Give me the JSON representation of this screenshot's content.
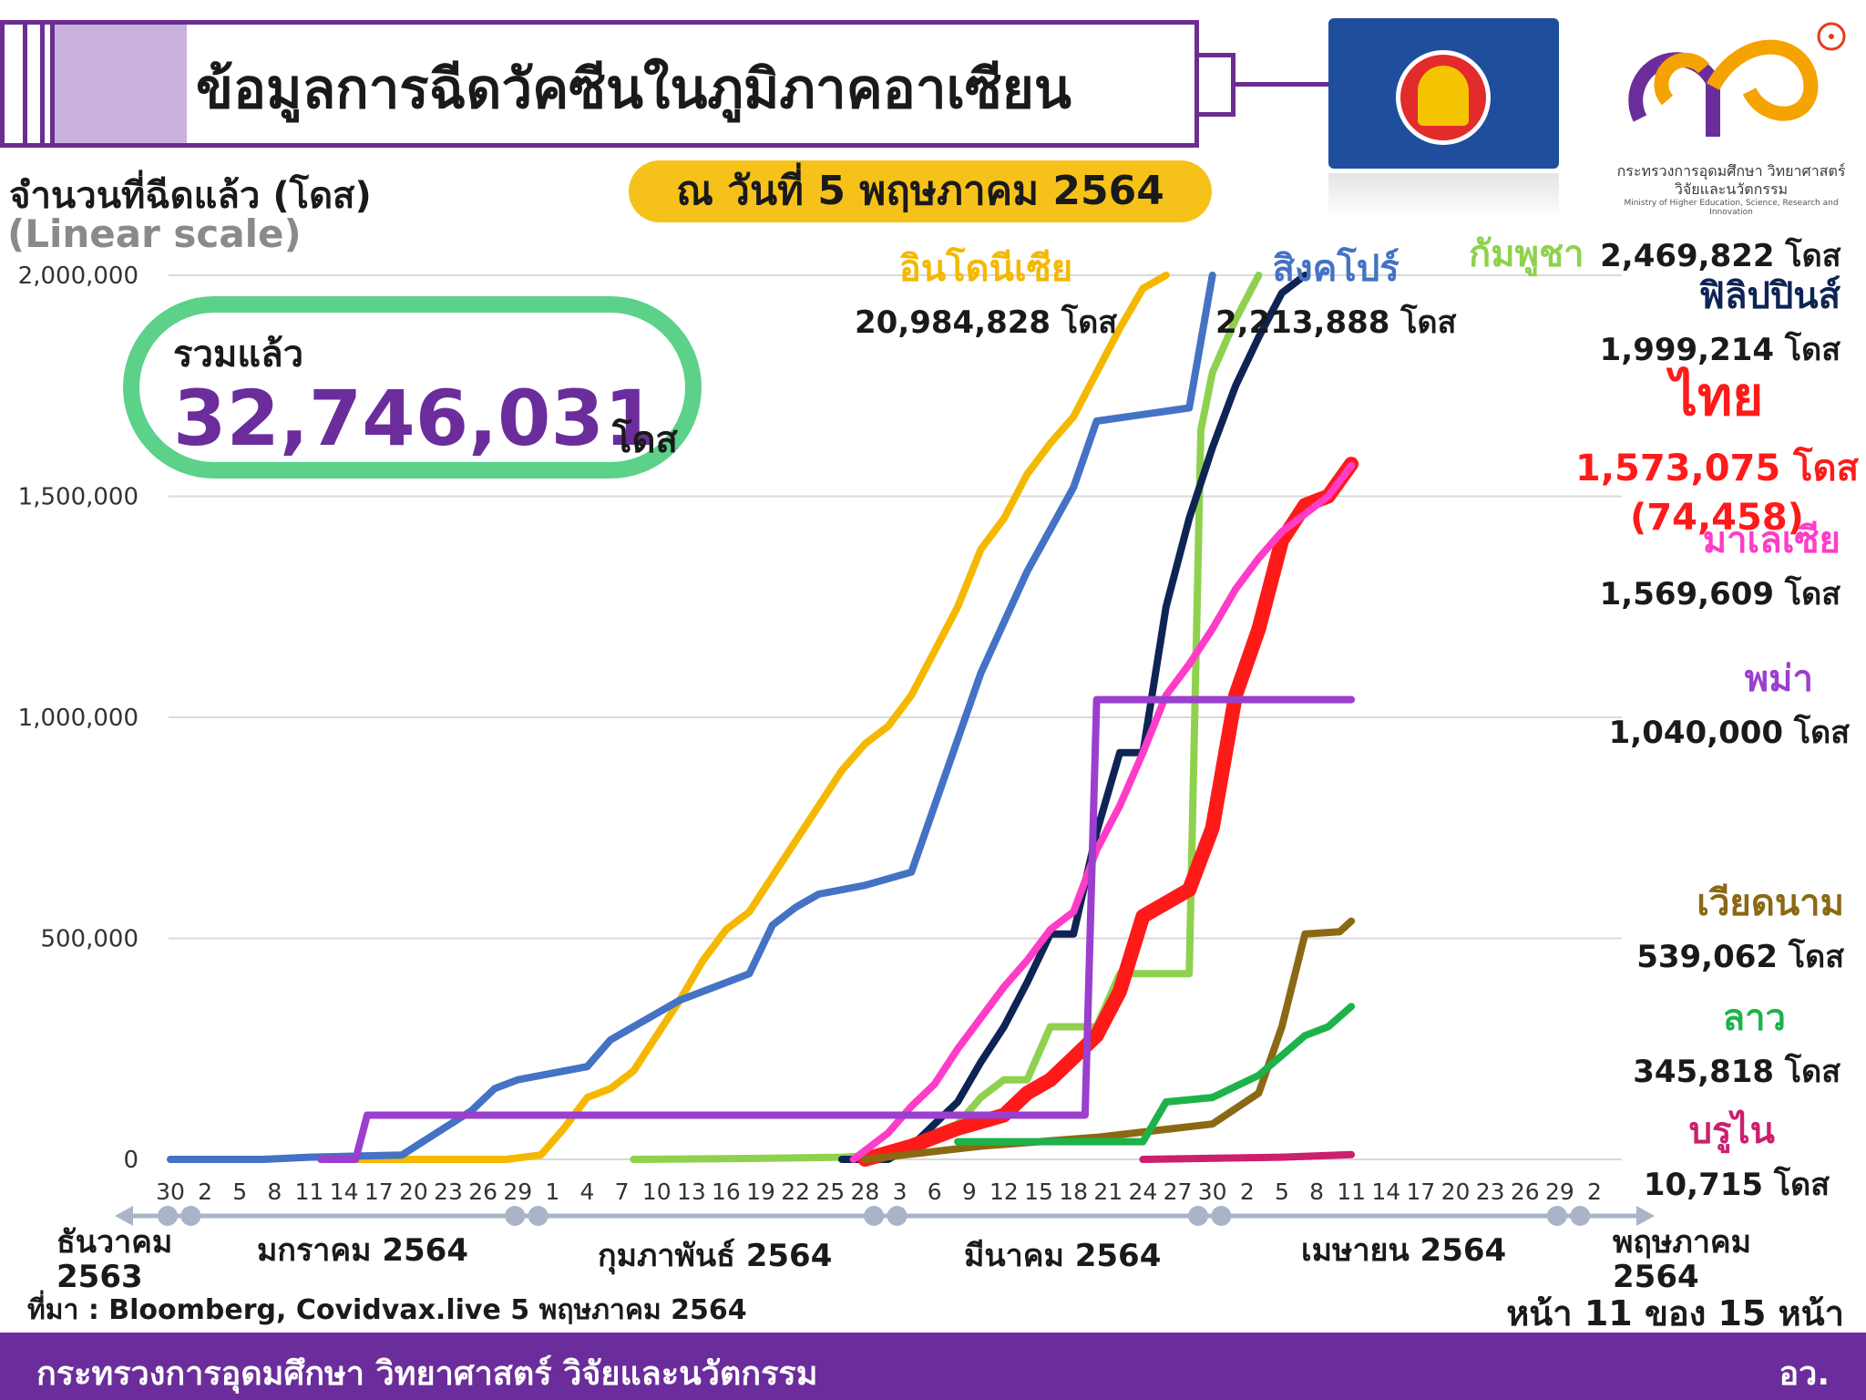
{
  "header": {
    "title": "ข้อมูลการฉีดวัคซีนในภูมิภาคอาเซียน",
    "date": "ณ วันที่ 5 พฤษภาคม 2564",
    "logo_org": "กระทรวงการอุดมศึกษา วิทยาศาสตร์ วิจัยและนวัตกรรม",
    "logo_org_en": "Ministry of Higher Education, Science, Research and Innovation"
  },
  "summary": {
    "label": "รวมแล้ว",
    "value": "32,746,031",
    "unit": "โดส"
  },
  "chart_data": {
    "type": "line",
    "ylabel": "จำนวนที่ฉีดแล้ว (โดส)",
    "yscale_note": "(Linear scale)",
    "ylim": [
      0,
      2000000
    ],
    "y_ticks": [
      "0",
      "500,000",
      "1,000,000",
      "1,500,000",
      "2,000,000"
    ],
    "x_ticks": [
      "30",
      "2",
      "5",
      "8",
      "11",
      "14",
      "17",
      "20",
      "23",
      "26",
      "29",
      "1",
      "4",
      "7",
      "10",
      "13",
      "16",
      "19",
      "22",
      "25",
      "28",
      "3",
      "6",
      "9",
      "12",
      "15",
      "18",
      "21",
      "24",
      "27",
      "30",
      "2",
      "5",
      "8",
      "11",
      "14",
      "17",
      "20",
      "23",
      "26",
      "29",
      "2"
    ],
    "months": [
      {
        "label": "ธันวาคม\n2563"
      },
      {
        "label": "มกราคม 2564"
      },
      {
        "label": "กุมภาพันธ์ 2564"
      },
      {
        "label": "มีนาคม 2564"
      },
      {
        "label": "เมษายน 2564"
      },
      {
        "label": "พฤษภาคม\n2564"
      }
    ],
    "x_start": "2020-12-30",
    "series": [
      {
        "name": "อินโดนีเซีย",
        "color": "#f5b800",
        "total": "20,984,828 โดส",
        "points": [
          [
            16,
            0
          ],
          [
            24,
            0
          ],
          [
            29,
            0
          ],
          [
            32,
            10000
          ],
          [
            34,
            70000
          ],
          [
            36,
            140000
          ],
          [
            38,
            160000
          ],
          [
            40,
            200000
          ],
          [
            42,
            280000
          ],
          [
            44,
            360000
          ],
          [
            46,
            450000
          ],
          [
            48,
            520000
          ],
          [
            50,
            560000
          ],
          [
            52,
            640000
          ],
          [
            54,
            720000
          ],
          [
            56,
            800000
          ],
          [
            58,
            880000
          ],
          [
            60,
            940000
          ],
          [
            62,
            980000
          ],
          [
            64,
            1050000
          ],
          [
            66,
            1150000
          ],
          [
            68,
            1250000
          ],
          [
            70,
            1380000
          ],
          [
            72,
            1450000
          ],
          [
            74,
            1550000
          ],
          [
            76,
            1620000
          ],
          [
            78,
            1680000
          ],
          [
            80,
            1780000
          ],
          [
            82,
            1880000
          ],
          [
            84,
            1970000
          ],
          [
            86,
            2000000
          ]
        ]
      },
      {
        "name": "สิงคโปร์",
        "color": "#4472c4",
        "total": "2,213,888 โดส",
        "points": [
          [
            0,
            0
          ],
          [
            8,
            0
          ],
          [
            12,
            5000
          ],
          [
            20,
            10000
          ],
          [
            23,
            60000
          ],
          [
            26,
            110000
          ],
          [
            28,
            160000
          ],
          [
            30,
            180000
          ],
          [
            36,
            210000
          ],
          [
            38,
            270000
          ],
          [
            44,
            360000
          ],
          [
            50,
            420000
          ],
          [
            52,
            530000
          ],
          [
            54,
            570000
          ],
          [
            56,
            600000
          ],
          [
            60,
            620000
          ],
          [
            64,
            650000
          ],
          [
            66,
            800000
          ],
          [
            70,
            1100000
          ],
          [
            74,
            1330000
          ],
          [
            78,
            1520000
          ],
          [
            80,
            1670000
          ],
          [
            88,
            1700000
          ],
          [
            90,
            2000000
          ]
        ]
      },
      {
        "name": "กัมพูชา",
        "color": "#8fd14f",
        "total": "2,469,822 โดส",
        "points": [
          [
            40,
            0
          ],
          [
            50,
            2000
          ],
          [
            58,
            5000
          ],
          [
            62,
            10000
          ],
          [
            64,
            20000
          ],
          [
            66,
            60000
          ],
          [
            68,
            80000
          ],
          [
            70,
            140000
          ],
          [
            72,
            180000
          ],
          [
            74,
            180000
          ],
          [
            76,
            300000
          ],
          [
            80,
            300000
          ],
          [
            82,
            420000
          ],
          [
            88,
            420000
          ],
          [
            89,
            1650000
          ],
          [
            90,
            1780000
          ],
          [
            92,
            1900000
          ],
          [
            94,
            2000000
          ]
        ]
      },
      {
        "name": "ฟิลิปปินส์",
        "color": "#0e2454",
        "total": "1,999,214 โดส",
        "points": [
          [
            58,
            0
          ],
          [
            62,
            0
          ],
          [
            64,
            30000
          ],
          [
            66,
            80000
          ],
          [
            68,
            130000
          ],
          [
            70,
            220000
          ],
          [
            72,
            300000
          ],
          [
            74,
            400000
          ],
          [
            76,
            510000
          ],
          [
            78,
            510000
          ],
          [
            80,
            740000
          ],
          [
            82,
            920000
          ],
          [
            84,
            920000
          ],
          [
            86,
            1250000
          ],
          [
            88,
            1450000
          ],
          [
            90,
            1610000
          ],
          [
            92,
            1750000
          ],
          [
            94,
            1860000
          ],
          [
            96,
            1960000
          ],
          [
            98,
            2000000
          ]
        ]
      },
      {
        "name": "ไทย",
        "color": "#ff1a1a",
        "total": "1,573,075 โดส",
        "note": "(74,458)",
        "points": [
          [
            60,
            0
          ],
          [
            64,
            30000
          ],
          [
            68,
            70000
          ],
          [
            72,
            100000
          ],
          [
            74,
            150000
          ],
          [
            76,
            180000
          ],
          [
            78,
            230000
          ],
          [
            80,
            280000
          ],
          [
            82,
            380000
          ],
          [
            84,
            550000
          ],
          [
            86,
            580000
          ],
          [
            88,
            610000
          ],
          [
            90,
            750000
          ],
          [
            92,
            1050000
          ],
          [
            94,
            1200000
          ],
          [
            96,
            1400000
          ],
          [
            98,
            1480000
          ],
          [
            100,
            1500000
          ],
          [
            102,
            1573075
          ]
        ]
      },
      {
        "name": "มาเลเซีย",
        "color": "#ff3cc7",
        "total": "1,569,609 โดส",
        "points": [
          [
            59,
            0
          ],
          [
            62,
            60000
          ],
          [
            64,
            120000
          ],
          [
            66,
            170000
          ],
          [
            68,
            250000
          ],
          [
            70,
            320000
          ],
          [
            72,
            390000
          ],
          [
            74,
            450000
          ],
          [
            76,
            520000
          ],
          [
            78,
            560000
          ],
          [
            80,
            700000
          ],
          [
            82,
            800000
          ],
          [
            84,
            920000
          ],
          [
            86,
            1050000
          ],
          [
            88,
            1120000
          ],
          [
            90,
            1200000
          ],
          [
            92,
            1290000
          ],
          [
            94,
            1360000
          ],
          [
            96,
            1420000
          ],
          [
            98,
            1460000
          ],
          [
            100,
            1500000
          ],
          [
            102,
            1569609
          ]
        ]
      },
      {
        "name": "พม่า",
        "color": "#9b3fcf",
        "total": "1,040,000 โดส",
        "points": [
          [
            13,
            0
          ],
          [
            16,
            0
          ],
          [
            17,
            100000
          ],
          [
            79,
            100000
          ],
          [
            80,
            1040000
          ],
          [
            102,
            1040000
          ]
        ]
      },
      {
        "name": "เวียดนาม",
        "color": "#8b6914",
        "total": "539,062 โดส",
        "points": [
          [
            60,
            0
          ],
          [
            70,
            30000
          ],
          [
            80,
            50000
          ],
          [
            90,
            80000
          ],
          [
            94,
            150000
          ],
          [
            96,
            300000
          ],
          [
            98,
            510000
          ],
          [
            101,
            515000
          ],
          [
            102,
            539062
          ]
        ]
      },
      {
        "name": "ลาว",
        "color": "#1db34a",
        "total": "345,818 โดส",
        "points": [
          [
            68,
            40000
          ],
          [
            84,
            40000
          ],
          [
            86,
            130000
          ],
          [
            90,
            140000
          ],
          [
            94,
            190000
          ],
          [
            98,
            280000
          ],
          [
            100,
            300000
          ],
          [
            102,
            345818
          ]
        ]
      },
      {
        "name": "บรูไน",
        "color": "#cc1f6e",
        "total": "10,715 โดส",
        "points": [
          [
            84,
            0
          ],
          [
            96,
            5000
          ],
          [
            102,
            10715
          ]
        ]
      }
    ]
  },
  "footer": {
    "source": "ที่มา : Bloomberg, Covidvax.live 5 พฤษภาคม 2564",
    "page": "หน้า 11 ของ 15 หน้า",
    "org": "กระทรวงการอุดมศึกษา วิทยาศาสตร์ วิจัยและนวัตกรรม",
    "org_short": "อว."
  }
}
